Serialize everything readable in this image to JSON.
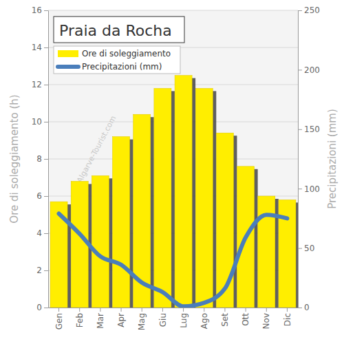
{
  "chart_data": {
    "type": "bar",
    "title": "Praia da Rocha",
    "categories": [
      "Gen",
      "Feb",
      "Mar",
      "Apr",
      "Mag",
      "Giu",
      "Lug",
      "Ago",
      "Set",
      "Ott",
      "Nov",
      "Dic"
    ],
    "series": [
      {
        "name": "Ore di soleggiamento",
        "type": "bar",
        "color": "#ffee00",
        "values": [
          5.7,
          6.8,
          7.1,
          9.2,
          10.4,
          11.8,
          12.5,
          11.8,
          9.4,
          7.6,
          6.0,
          5.8
        ]
      },
      {
        "name": "Precipitazioni (mm)",
        "type": "line",
        "color": "#4a7ebb",
        "axis": "y2",
        "values": [
          79,
          62,
          43,
          36,
          21,
          13,
          1,
          4,
          16,
          59,
          78,
          75
        ]
      }
    ],
    "y_label": "Ore di soleggiamento (h)",
    "y2_label": "Precipitazioni (mm)",
    "ylim": [
      0,
      16
    ],
    "yticks": [
      0,
      2,
      4,
      6,
      8,
      10,
      12,
      14,
      16
    ],
    "y2lim": [
      0,
      250
    ],
    "y2ticks": [
      0,
      50,
      100,
      150,
      200,
      250
    ],
    "annotations": [
      "© Algarve-Tourist.com"
    ],
    "grid": true,
    "legend": "top-left"
  }
}
